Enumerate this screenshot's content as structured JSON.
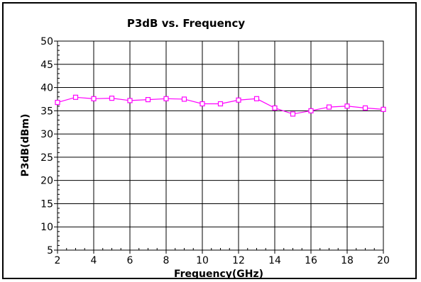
{
  "chart_data": {
    "type": "line",
    "title": "P3dB vs. Frequency",
    "xlabel": "Frequency(GHz)",
    "ylabel": "P3dB(dBm)",
    "xlim": [
      2,
      20
    ],
    "ylim": [
      5,
      50
    ],
    "xticks": [
      2,
      4,
      6,
      8,
      10,
      12,
      14,
      16,
      18,
      20
    ],
    "yticks": [
      5,
      10,
      15,
      20,
      25,
      30,
      35,
      40,
      45,
      50
    ],
    "grid": true,
    "series": [
      {
        "color": "#ff00ff",
        "marker": "square",
        "x": [
          2,
          3,
          4,
          5,
          6,
          7,
          8,
          9,
          10,
          11,
          12,
          13,
          14,
          15,
          16,
          17,
          18,
          19,
          20
        ],
        "y": [
          36.8,
          37.9,
          37.6,
          37.7,
          37.2,
          37.4,
          37.6,
          37.5,
          36.5,
          36.5,
          37.3,
          37.6,
          35.6,
          34.3,
          35.0,
          35.8,
          36.0,
          35.6,
          35.3
        ]
      }
    ]
  }
}
